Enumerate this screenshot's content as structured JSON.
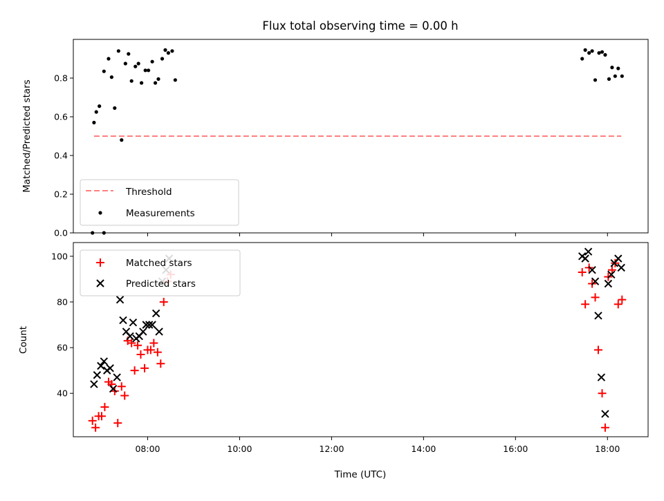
{
  "chart_data": [
    {
      "type": "scatter",
      "title": "Flux total observing time = 0.00 h",
      "ylabel": "Matched/Predicted stars",
      "xlabel": "",
      "ylim": [
        0,
        1.0
      ],
      "xlim": [
        "06:23",
        "18:53"
      ],
      "yticks": [
        0.0,
        0.2,
        0.4,
        0.6,
        0.8
      ],
      "ytick_labels": [
        "0.0",
        "0.2",
        "0.4",
        "0.6",
        "0.8"
      ],
      "grid": false,
      "legend": {
        "placement": "lower-left",
        "entries": [
          "Threshold",
          "Measurements"
        ]
      },
      "series": [
        {
          "name": "Threshold",
          "style": "dashed-line",
          "color": "#ff7f7f",
          "x": [
            "06:50",
            "18:18"
          ],
          "y": [
            0.5,
            0.5
          ]
        },
        {
          "name": "Measurements",
          "style": "dot",
          "color": "#000000",
          "x": [
            "06:50",
            "06:53",
            "06:57",
            "07:03",
            "07:09",
            "07:13",
            "07:17",
            "07:22",
            "07:26",
            "07:31",
            "07:35",
            "07:39",
            "07:44",
            "07:48",
            "07:52",
            "07:57",
            "08:01",
            "08:06",
            "08:10",
            "08:14",
            "08:19",
            "08:23",
            "08:27",
            "08:32",
            "08:36",
            "06:48",
            "07:03",
            "17:27",
            "17:31",
            "17:36",
            "17:40",
            "17:44",
            "17:49",
            "17:53",
            "17:57",
            "18:02",
            "18:06",
            "18:10",
            "18:14",
            "18:19"
          ],
          "y": [
            0.57,
            0.625,
            0.655,
            0.835,
            0.9,
            0.805,
            0.645,
            0.94,
            0.48,
            0.875,
            0.925,
            0.785,
            0.86,
            0.875,
            0.775,
            0.84,
            0.84,
            0.885,
            0.775,
            0.795,
            0.9,
            0.945,
            0.93,
            0.94,
            0.79,
            0.0,
            0.0,
            0.9,
            0.945,
            0.93,
            0.94,
            0.79,
            0.93,
            0.935,
            0.92,
            0.795,
            0.855,
            0.81,
            0.85,
            0.81
          ]
        }
      ]
    },
    {
      "type": "scatter",
      "title": "",
      "xlabel": "Time (UTC)",
      "ylabel": "Count",
      "ylim": [
        21,
        106
      ],
      "xlim": [
        "06:23",
        "18:53"
      ],
      "xticks": [
        "08:00",
        "10:00",
        "12:00",
        "14:00",
        "16:00",
        "18:00"
      ],
      "yticks": [
        40,
        60,
        80,
        100
      ],
      "ytick_labels": [
        "40",
        "60",
        "80",
        "100"
      ],
      "grid": false,
      "legend": {
        "placement": "upper-left",
        "entries": [
          "Matched stars",
          "Predicted stars"
        ]
      },
      "series": [
        {
          "name": "Matched stars",
          "marker": "plus",
          "color": "#ff0000",
          "x": [
            "06:48",
            "06:52",
            "06:56",
            "07:00",
            "07:04",
            "07:09",
            "07:13",
            "07:17",
            "07:21",
            "07:26",
            "07:30",
            "07:34",
            "07:39",
            "07:43",
            "07:47",
            "07:51",
            "07:56",
            "08:00",
            "08:04",
            "08:08",
            "08:13",
            "08:17",
            "08:21",
            "08:26",
            "08:30",
            "17:27",
            "17:31",
            "17:36",
            "17:40",
            "17:44",
            "17:48",
            "17:53",
            "17:57",
            "18:01",
            "18:06",
            "18:10",
            "18:14",
            "18:19"
          ],
          "y": [
            28,
            25,
            30,
            30,
            34,
            45,
            44,
            41,
            27,
            43,
            39,
            63,
            62,
            50,
            61,
            57,
            51,
            59,
            59,
            62,
            58,
            53,
            80,
            89,
            92,
            93,
            79,
            95,
            88,
            82,
            59,
            40,
            25,
            91,
            94,
            97,
            79,
            81
          ]
        },
        {
          "name": "Predicted stars",
          "marker": "x",
          "color": "#000000",
          "x": [
            "06:50",
            "06:54",
            "06:59",
            "07:03",
            "07:07",
            "07:11",
            "07:15",
            "07:20",
            "07:24",
            "07:28",
            "07:32",
            "07:37",
            "07:41",
            "07:45",
            "07:49",
            "07:54",
            "07:58",
            "08:02",
            "08:06",
            "08:11",
            "08:15",
            "08:19",
            "08:24",
            "08:28",
            "17:27",
            "17:31",
            "17:35",
            "17:40",
            "17:44",
            "17:48",
            "17:52",
            "17:57",
            "18:01",
            "18:05",
            "18:09",
            "18:14",
            "18:18"
          ],
          "y": [
            44,
            48,
            52,
            54,
            50,
            51,
            42,
            47,
            81,
            72,
            67,
            65,
            71,
            64,
            65,
            67,
            70,
            70,
            70,
            75,
            67,
            89,
            94,
            99,
            100,
            99,
            102,
            94,
            89,
            74,
            47,
            31,
            88,
            92,
            97,
            99,
            95
          ]
        }
      ]
    }
  ]
}
